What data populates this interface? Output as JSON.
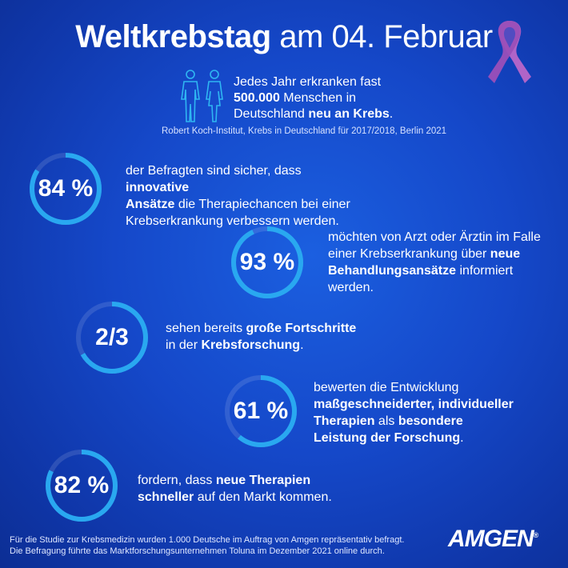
{
  "header": {
    "title_bold": "Weltkrebstag",
    "title_rest": "am 04. Februar"
  },
  "intro": {
    "line1": "Jedes Jahr erkranken fast",
    "count": "500.000",
    "line2": "Menschen in",
    "line3": "Deutschland",
    "emph": "neu an Krebs",
    "end": ".",
    "source": "Robert Koch-Institut, Krebs in Deutschland für 2017/2018, Berlin 2021"
  },
  "stats": [
    {
      "value": "84 %",
      "fraction": 0.84,
      "t1": "der Befragten sind sicher, dass",
      "b1": "innovative",
      "b2": "Ansätze",
      "t2": "die Therapiechancen bei einer",
      "t3": "Krebserkrankung verbessern werden."
    },
    {
      "value": "93 %",
      "fraction": 0.93,
      "t1": "möchten von Arzt oder Ärztin im Falle",
      "t2": "einer Krebserkrankung über",
      "b1": "neue",
      "b2": "Behandlungsansätze",
      "t3": "informiert",
      "t4": "werden."
    },
    {
      "value": "2/3",
      "fraction": 0.667,
      "t1": "sehen bereits",
      "b1": "große Fortschritte",
      "t2": "in der",
      "b2": "Krebsforschung",
      "t3": "."
    },
    {
      "value": "61 %",
      "fraction": 0.61,
      "t1": "bewerten die Entwicklung",
      "b1": "maßgeschneiderter, individueller",
      "b2": "Therapien",
      "t2": "als",
      "b3": "besondere",
      "b4": "Leistung der Forschung",
      "t3": "."
    },
    {
      "value": "82 %",
      "fraction": 0.82,
      "t1": "fordern, dass",
      "b1": "neue Therapien",
      "b2": "schneller",
      "t2": "auf den Markt kommen."
    }
  ],
  "footer": {
    "line1": "Für die Studie zur Krebsmedizin wurden 1.000 Deutsche im Auftrag von Amgen repräsentativ befragt.",
    "line2": "Die Befragung führte das Marktforschungsunternehmen Toluna im Dezember 2021 online durch."
  },
  "logo": {
    "text": "AMGEN",
    "mark": "®"
  },
  "colors": {
    "ring_fg": "#29a8f0",
    "ring_bg": "rgba(255,255,255,0.12)",
    "ribbon": "#b064c8",
    "figures": "#2fb6f2"
  }
}
